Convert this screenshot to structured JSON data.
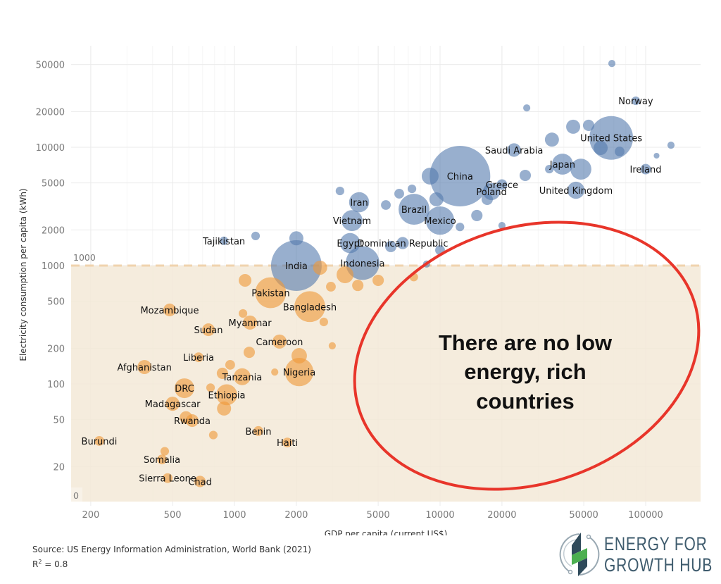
{
  "chart_data": {
    "type": "scatter",
    "subtype": "bubble",
    "xlabel": "GDP per capita (current US$)",
    "ylabel": "Electricity consumption per capita (kWh)",
    "x_scale": "log",
    "y_scale": "log",
    "xlim": [
      170,
      160000
    ],
    "ylim": [
      10,
      80000
    ],
    "x_ticks": [
      200,
      500,
      1000,
      2000,
      5000,
      10000,
      20000,
      50000,
      100000
    ],
    "y_ticks": [
      20,
      50,
      100,
      200,
      500,
      1000,
      2000,
      5000,
      10000,
      20000,
      50000
    ],
    "grid": true,
    "threshold": {
      "value": 1000,
      "label_top": "1000",
      "label_bottom": "0",
      "band_color": "#f3e9d7",
      "line_color": "#f0d3ae"
    },
    "colors": {
      "above": "#547aae",
      "below": "#ef9a3a"
    },
    "size_note": "relative bubble area, China = 100",
    "annotation": {
      "lines": [
        "There are no low",
        "energy, rich",
        "countries"
      ],
      "ellipse_color": "#e8352a"
    },
    "points": [
      {
        "label": "China",
        "gdp": 12500,
        "elec": 5700,
        "size": 100,
        "group": "above"
      },
      {
        "label": "India",
        "gdp": 2000,
        "elec": 1000,
        "size": 70,
        "group": "above"
      },
      {
        "label": "United States",
        "gdp": 68000,
        "elec": 12000,
        "size": 52,
        "group": "above"
      },
      {
        "label": "Indonesia",
        "gdp": 4200,
        "elec": 1050,
        "size": 31,
        "group": "above"
      },
      {
        "label": "Brazil",
        "gdp": 7470,
        "elec": 2990,
        "size": 26,
        "group": "above"
      },
      {
        "label": "Mexico",
        "gdp": 10000,
        "elec": 2400,
        "size": 22,
        "group": "above"
      },
      {
        "label": "Japan",
        "gdp": 39400,
        "elec": 7200,
        "size": 12,
        "group": "above"
      },
      {
        "label": "Iran",
        "gdp": 4040,
        "elec": 3430,
        "size": 11,
        "group": "above"
      },
      {
        "label": "Vietnam",
        "gdp": 3730,
        "elec": 2400,
        "size": 12,
        "group": "above"
      },
      {
        "label": "Egypt",
        "gdp": 3650,
        "elec": 1550,
        "size": 11,
        "group": "above"
      },
      {
        "label": "Dominican Republic",
        "gdp": 6580,
        "elec": 1550,
        "size": 4,
        "group": "above"
      },
      {
        "label": "Saudi Arabia",
        "gdp": 22900,
        "elec": 9470,
        "size": 5,
        "group": "above"
      },
      {
        "label": "Greece",
        "gdp": 20000,
        "elec": 4840,
        "size": 3,
        "group": "above"
      },
      {
        "label": "Poland",
        "gdp": 17800,
        "elec": 4220,
        "size": 8,
        "group": "above"
      },
      {
        "label": "United Kingdom",
        "gdp": 45800,
        "elec": 4330,
        "size": 8,
        "group": "above"
      },
      {
        "label": "Ireland",
        "gdp": 100000,
        "elec": 6530,
        "size": 3,
        "group": "above"
      },
      {
        "label": "Norway",
        "gdp": 89500,
        "elec": 24700,
        "size": 2,
        "group": "above"
      },
      {
        "label": "Tajikistan",
        "gdp": 889,
        "elec": 1620,
        "size": 2,
        "group": "above"
      },
      {
        "label": "",
        "gdp": 68500,
        "elec": 51000,
        "size": 1.4,
        "group": "above"
      },
      {
        "label": "",
        "gdp": 26400,
        "elec": 21500,
        "size": 1.4,
        "group": "above"
      },
      {
        "label": "",
        "gdp": 132800,
        "elec": 10400,
        "size": 1.4,
        "group": "above"
      },
      {
        "label": "",
        "gdp": 113000,
        "elec": 8480,
        "size": 0.9,
        "group": "above"
      },
      {
        "label": "",
        "gdp": 52800,
        "elec": 15300,
        "size": 3.5,
        "group": "above"
      },
      {
        "label": "",
        "gdp": 44400,
        "elec": 14900,
        "size": 5.4,
        "group": "above"
      },
      {
        "label": "",
        "gdp": 35000,
        "elec": 11600,
        "size": 5.4,
        "group": "above"
      },
      {
        "label": "",
        "gdp": 60400,
        "elec": 9860,
        "size": 5.4,
        "group": "above"
      },
      {
        "label": "",
        "gdp": 74700,
        "elec": 9200,
        "size": 2.6,
        "group": "above"
      },
      {
        "label": "",
        "gdp": 48400,
        "elec": 6530,
        "size": 12,
        "group": "above"
      },
      {
        "label": "",
        "gdp": 25960,
        "elec": 5780,
        "size": 3.5,
        "group": "above"
      },
      {
        "label": "",
        "gdp": 34000,
        "elec": 6530,
        "size": 2,
        "group": "above"
      },
      {
        "label": "",
        "gdp": 16960,
        "elec": 3630,
        "size": 3.5,
        "group": "above"
      },
      {
        "label": "",
        "gdp": 20000,
        "elec": 2180,
        "size": 1.4,
        "group": "above"
      },
      {
        "label": "",
        "gdp": 15100,
        "elec": 2650,
        "size": 3.5,
        "group": "above"
      },
      {
        "label": "",
        "gdp": 12500,
        "elec": 2120,
        "size": 2,
        "group": "above"
      },
      {
        "label": "",
        "gdp": 9600,
        "elec": 3630,
        "size": 5.4,
        "group": "above"
      },
      {
        "label": "",
        "gdp": 8950,
        "elec": 5700,
        "size": 7.8,
        "group": "above"
      },
      {
        "label": "",
        "gdp": 7300,
        "elec": 4450,
        "size": 2,
        "group": "above"
      },
      {
        "label": "",
        "gdp": 5450,
        "elec": 3250,
        "size": 2.6,
        "group": "above"
      },
      {
        "label": "",
        "gdp": 6330,
        "elec": 4050,
        "size": 2.6,
        "group": "above"
      },
      {
        "label": "",
        "gdp": 3260,
        "elec": 4270,
        "size": 2,
        "group": "above"
      },
      {
        "label": "",
        "gdp": 8600,
        "elec": 1030,
        "size": 1.4,
        "group": "above"
      },
      {
        "label": "",
        "gdp": 1267,
        "elec": 1780,
        "size": 2,
        "group": "above"
      },
      {
        "label": "",
        "gdp": 2000,
        "elec": 1700,
        "size": 5.4,
        "group": "above"
      },
      {
        "label": "",
        "gdp": 5760,
        "elec": 1450,
        "size": 3.5,
        "group": "above"
      },
      {
        "label": "",
        "gdp": 10000,
        "elec": 1350,
        "size": 2.6,
        "group": "above"
      },
      {
        "label": "Pakistan",
        "gdp": 1500,
        "elec": 590,
        "size": 26,
        "group": "below"
      },
      {
        "label": "Bangladesh",
        "gdp": 2325,
        "elec": 450,
        "size": 26,
        "group": "below"
      },
      {
        "label": "Nigeria",
        "gdp": 2065,
        "elec": 126,
        "size": 22,
        "group": "below"
      },
      {
        "label": "Mozambique",
        "gdp": 484,
        "elec": 422,
        "size": 4.4,
        "group": "below"
      },
      {
        "label": "Sudan",
        "gdp": 747,
        "elec": 287,
        "size": 4.4,
        "group": "below"
      },
      {
        "label": "Myanmar",
        "gdp": 1190,
        "elec": 330,
        "size": 5.4,
        "group": "below"
      },
      {
        "label": "Cameroon",
        "gdp": 1656,
        "elec": 228,
        "size": 5.4,
        "group": "below"
      },
      {
        "label": "Liberia",
        "gdp": 669,
        "elec": 168,
        "size": 2.6,
        "group": "below"
      },
      {
        "label": "Afghanistan",
        "gdp": 365,
        "elec": 139,
        "size": 5.4,
        "group": "below"
      },
      {
        "label": "Tanzania",
        "gdp": 1090,
        "elec": 115,
        "size": 7.8,
        "group": "below"
      },
      {
        "label": "DRC",
        "gdp": 571,
        "elec": 92,
        "size": 10.6,
        "group": "below"
      },
      {
        "label": "Ethiopia",
        "gdp": 917,
        "elec": 81,
        "size": 12,
        "group": "below"
      },
      {
        "label": "Madagascar",
        "gdp": 500,
        "elec": 68,
        "size": 5.4,
        "group": "below"
      },
      {
        "label": "Rwanda",
        "gdp": 623,
        "elec": 49,
        "size": 4.4,
        "group": "below"
      },
      {
        "label": "Benin",
        "gdp": 1307,
        "elec": 40,
        "size": 2.6,
        "group": "below"
      },
      {
        "label": "Haiti",
        "gdp": 1807,
        "elec": 32,
        "size": 2.6,
        "group": "below"
      },
      {
        "label": "Burundi",
        "gdp": 220,
        "elec": 33,
        "size": 2.6,
        "group": "below"
      },
      {
        "label": "Somalia",
        "gdp": 444,
        "elec": 23,
        "size": 2.6,
        "group": "below"
      },
      {
        "label": "Sierra Leone",
        "gdp": 473,
        "elec": 16,
        "size": 2.6,
        "group": "below"
      },
      {
        "label": "Chad",
        "gdp": 680,
        "elec": 15,
        "size": 3.5,
        "group": "below"
      },
      {
        "label": "",
        "gdp": 1126,
        "elec": 750,
        "size": 4.4,
        "group": "below"
      },
      {
        "label": "",
        "gdp": 5000,
        "elec": 750,
        "size": 3.5,
        "group": "below"
      },
      {
        "label": "",
        "gdp": 3980,
        "elec": 680,
        "size": 3.5,
        "group": "below"
      },
      {
        "label": "",
        "gdp": 2945,
        "elec": 663,
        "size": 2.6,
        "group": "below"
      },
      {
        "label": "",
        "gdp": 2610,
        "elec": 960,
        "size": 5.4,
        "group": "below"
      },
      {
        "label": "",
        "gdp": 3450,
        "elec": 837,
        "size": 7.8,
        "group": "below"
      },
      {
        "label": "",
        "gdp": 7450,
        "elec": 800,
        "size": 2,
        "group": "below"
      },
      {
        "label": "",
        "gdp": 2720,
        "elec": 334,
        "size": 2,
        "group": "below"
      },
      {
        "label": "",
        "gdp": 2990,
        "elec": 210,
        "size": 1.4,
        "group": "below"
      },
      {
        "label": "",
        "gdp": 1100,
        "elec": 394,
        "size": 2,
        "group": "below"
      },
      {
        "label": "",
        "gdp": 1180,
        "elec": 185,
        "size": 3.5,
        "group": "below"
      },
      {
        "label": "",
        "gdp": 2065,
        "elec": 173,
        "size": 6.5,
        "group": "below"
      },
      {
        "label": "",
        "gdp": 1570,
        "elec": 126,
        "size": 1.4,
        "group": "below"
      },
      {
        "label": "",
        "gdp": 953,
        "elec": 145,
        "size": 2.6,
        "group": "below"
      },
      {
        "label": "",
        "gdp": 874,
        "elec": 123,
        "size": 3.5,
        "group": "below"
      },
      {
        "label": "",
        "gdp": 765,
        "elec": 93,
        "size": 2,
        "group": "below"
      },
      {
        "label": "",
        "gdp": 581,
        "elec": 52,
        "size": 4.4,
        "group": "below"
      },
      {
        "label": "",
        "gdp": 789,
        "elec": 37,
        "size": 2,
        "group": "below"
      },
      {
        "label": "",
        "gdp": 458,
        "elec": 27,
        "size": 2,
        "group": "below"
      },
      {
        "label": "",
        "gdp": 890,
        "elec": 62,
        "size": 5.4,
        "group": "below"
      }
    ]
  },
  "footer": {
    "source": "Source: US Energy Information Administration, World Bank (2021)",
    "r2_prefix": "R",
    "r2_sup": "2",
    "r2_value": " = 0.8"
  },
  "logo": {
    "line1": "ENERGY FOR",
    "line2": "GROWTH HUB",
    "colors": {
      "text": "#3e5b6d",
      "green": "#4caf50",
      "dark": "#2f4a5a"
    }
  }
}
